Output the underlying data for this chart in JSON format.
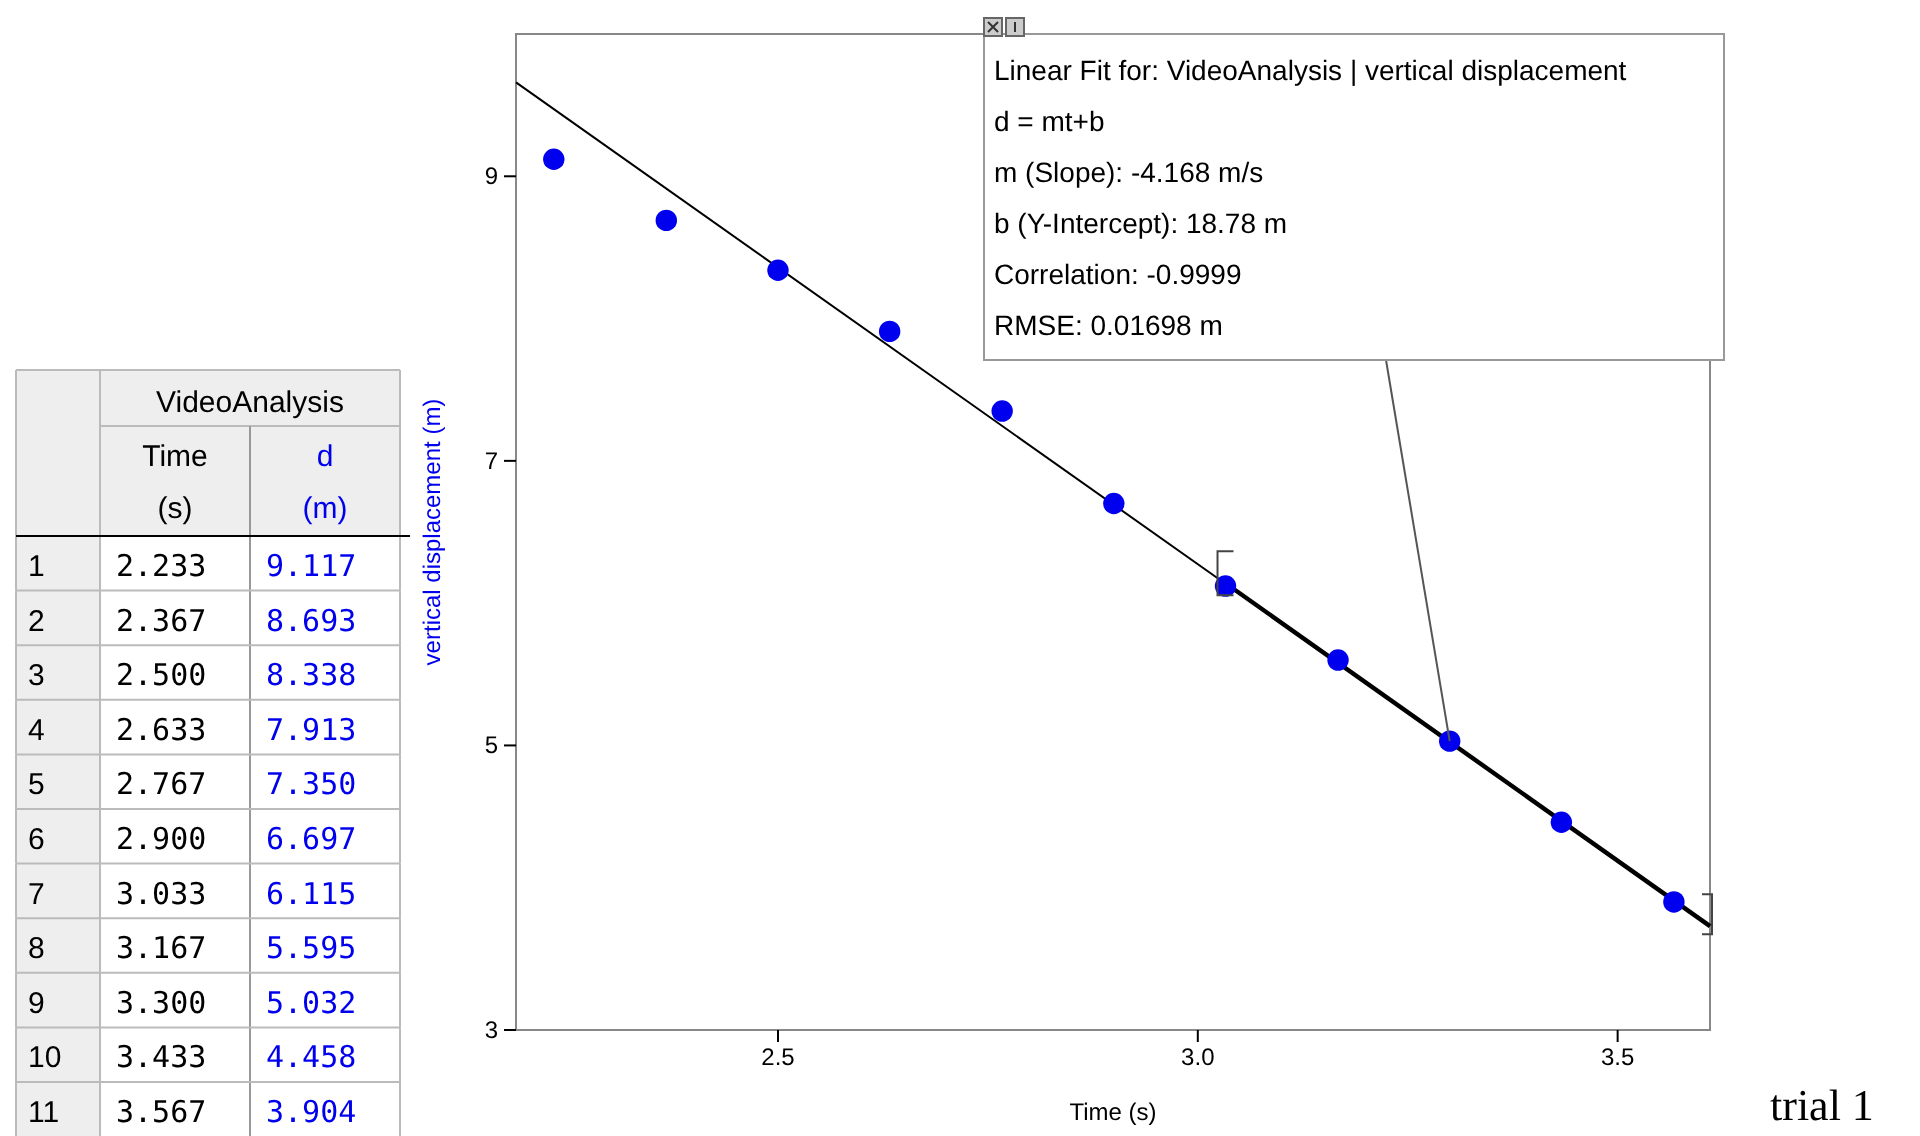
{
  "chart_data": [
    {
      "type": "heatmap",
      "title": "VideoAnalysis",
      "categories": [
        "Time (s)",
        "d (m)"
      ],
      "y_categories": [
        "1",
        "2",
        "3",
        "4",
        "5",
        "6",
        "7",
        "8",
        "9",
        "10",
        "11"
      ],
      "cells": [
        [
          2.233,
          9.117
        ],
        [
          2.367,
          8.693
        ],
        [
          2.5,
          8.338
        ],
        [
          2.633,
          7.913
        ],
        [
          2.767,
          7.35
        ],
        [
          2.9,
          6.697
        ],
        [
          3.033,
          6.115
        ],
        [
          3.167,
          5.595
        ],
        [
          3.3,
          5.032
        ],
        [
          3.433,
          4.458
        ],
        [
          3.567,
          3.904
        ]
      ],
      "cell_labels": [
        [
          "2.233",
          "9.117"
        ],
        [
          "2.367",
          "8.693"
        ],
        [
          "2.500",
          "8.338"
        ],
        [
          "2.633",
          "7.913"
        ],
        [
          "2.767",
          "7.350"
        ],
        [
          "2.900",
          "6.697"
        ],
        [
          "3.033",
          "6.115"
        ],
        [
          "3.167",
          "5.595"
        ],
        [
          "3.300",
          "5.032"
        ],
        [
          "3.433",
          "4.458"
        ],
        [
          "3.567",
          "3.904"
        ]
      ]
    },
    {
      "type": "scatter",
      "xlabel": "Time (s)",
      "ylabel": "vertical displacement (m)",
      "xlim": [
        2.188,
        3.61
      ],
      "ylim": [
        3,
        10
      ],
      "xticks": [
        2.5,
        {
          "value": 3,
          "label": "3.0"
        },
        3.5
      ],
      "yticks": [
        3,
        5,
        7,
        9
      ],
      "grid": false,
      "series": [
        {
          "color": "#0000ee",
          "marker": "circle",
          "x": [
            2.233,
            2.367,
            2.5,
            2.633,
            2.767,
            2.9,
            3.033,
            3.167,
            3.3,
            3.433,
            3.567
          ],
          "values": [
            9.12,
            8.69,
            8.34,
            7.91,
            7.35,
            6.7,
            6.12,
            5.6,
            5.03,
            4.46,
            3.9
          ]
        },
        {
          "type": "line",
          "marker": "none",
          "color": "#000000",
          "x": [
            2.188,
            3.61
          ],
          "values": [
            9.66,
            3.73
          ]
        },
        {
          "type": "line",
          "marker": "none",
          "color": "#000000",
          "x": [
            3.033,
            3.61
          ],
          "values": [
            6.14,
            3.73
          ]
        }
      ],
      "annotations": [
        "Linear Fit for: VideoAnalysis | vertical displacement",
        "d = mt+b",
        "m (Slope): -4.168 m/s",
        "b (Y-Intercept): 18.78 m",
        "Correlation: -0.9999",
        "RMSE: 0.01698 m",
        "trial 1"
      ]
    }
  ]
}
